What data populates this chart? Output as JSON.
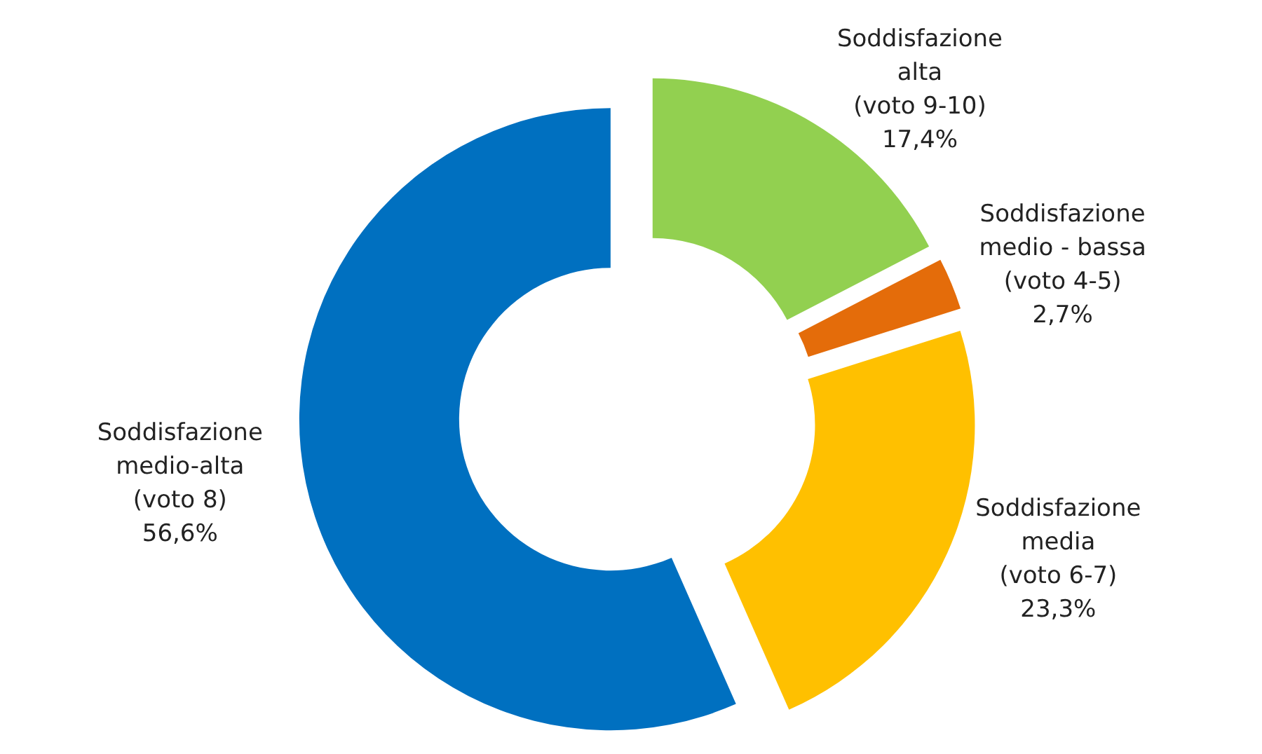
{
  "chart_data": {
    "type": "donut",
    "categories": [
      "Soddisfazione alta (voto 9-10)",
      "Soddisfazione medio - bassa (voto 4-5)",
      "Soddisfazione media (voto 6-7)",
      "Soddisfazione medio-alta (voto 8)"
    ],
    "values": [
      17.4,
      2.7,
      23.3,
      56.6
    ],
    "colors": [
      "#92d050",
      "#e46c0a",
      "#ffc000",
      "#0070c0"
    ],
    "value_labels": [
      "17,4%",
      "2,7%",
      "23,3%",
      "56,6%"
    ]
  }
}
